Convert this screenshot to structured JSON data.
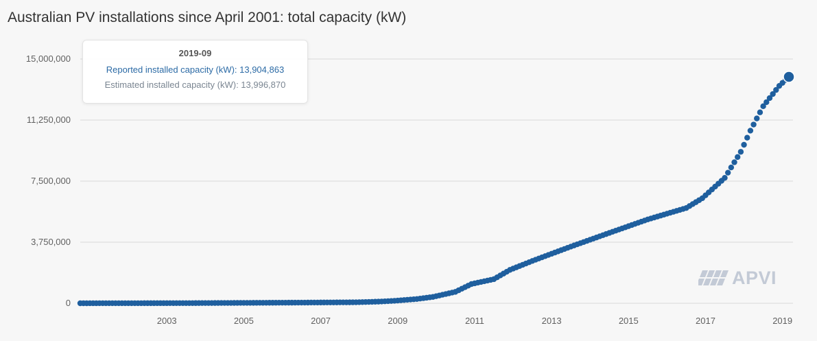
{
  "title": "Australian PV installations since April 2001: total capacity (kW)",
  "tooltip": {
    "date": "2019-09",
    "reported": "Reported installed capacity (kW): 13,904,863",
    "estimated": "Estimated installed capacity (kW): 13,996,870"
  },
  "logo": {
    "text": "APVI"
  },
  "colors": {
    "series": "#1f5f9e",
    "reported_text": "#2b6aa5",
    "estimated_text": "#7a8591",
    "grid": "#d8d8d8",
    "background": "#f7f7f7",
    "logo": "#c3cad6"
  },
  "chart_data": {
    "type": "scatter",
    "title": "Australian PV installations since April 2001: total capacity (kW)",
    "xlabel": "",
    "ylabel": "",
    "x_start": "2001-04",
    "x_end": "2019-09",
    "xlim": [
      "2001-04",
      "2019-09"
    ],
    "ylim": [
      0,
      15000000
    ],
    "y_ticks": [
      0,
      3750000,
      7500000,
      11250000,
      15000000
    ],
    "y_tick_labels": [
      "0",
      "3,750,000",
      "7,500,000",
      "11,250,000",
      "15,000,000"
    ],
    "x_ticks": [
      "2003",
      "2005",
      "2007",
      "2009",
      "2011",
      "2013",
      "2015",
      "2017",
      "2019"
    ],
    "grid": true,
    "legend": "none",
    "series": [
      {
        "marker": "circle",
        "points": [
          {
            "x": "2001-04",
            "y": 0
          },
          {
            "x": "2004-01",
            "y": 8000
          },
          {
            "x": "2007-01",
            "y": 40000
          },
          {
            "x": "2008-06",
            "y": 60000
          },
          {
            "x": "2009-01",
            "y": 100000
          },
          {
            "x": "2009-06",
            "y": 150000
          },
          {
            "x": "2010-01",
            "y": 260000
          },
          {
            "x": "2010-06",
            "y": 390000
          },
          {
            "x": "2011-01",
            "y": 700000
          },
          {
            "x": "2011-06",
            "y": 1180000
          },
          {
            "x": "2012-01",
            "y": 1480000
          },
          {
            "x": "2012-06",
            "y": 2050000
          },
          {
            "x": "2013-01",
            "y": 2600000
          },
          {
            "x": "2014-01",
            "y": 3480000
          },
          {
            "x": "2015-01",
            "y": 4320000
          },
          {
            "x": "2016-01",
            "y": 5150000
          },
          {
            "x": "2017-01",
            "y": 5850000
          },
          {
            "x": "2017-06",
            "y": 6450000
          },
          {
            "x": "2018-01",
            "y": 7700000
          },
          {
            "x": "2018-06",
            "y": 9300000
          },
          {
            "x": "2018-09",
            "y": 10600000
          },
          {
            "x": "2019-01",
            "y": 12100000
          },
          {
            "x": "2019-06",
            "y": 13350000
          },
          {
            "x": "2019-09",
            "y": 13904863
          }
        ]
      }
    ],
    "highlight": {
      "x": "2019-09",
      "reported": 13904863,
      "estimated": 13996870
    }
  }
}
